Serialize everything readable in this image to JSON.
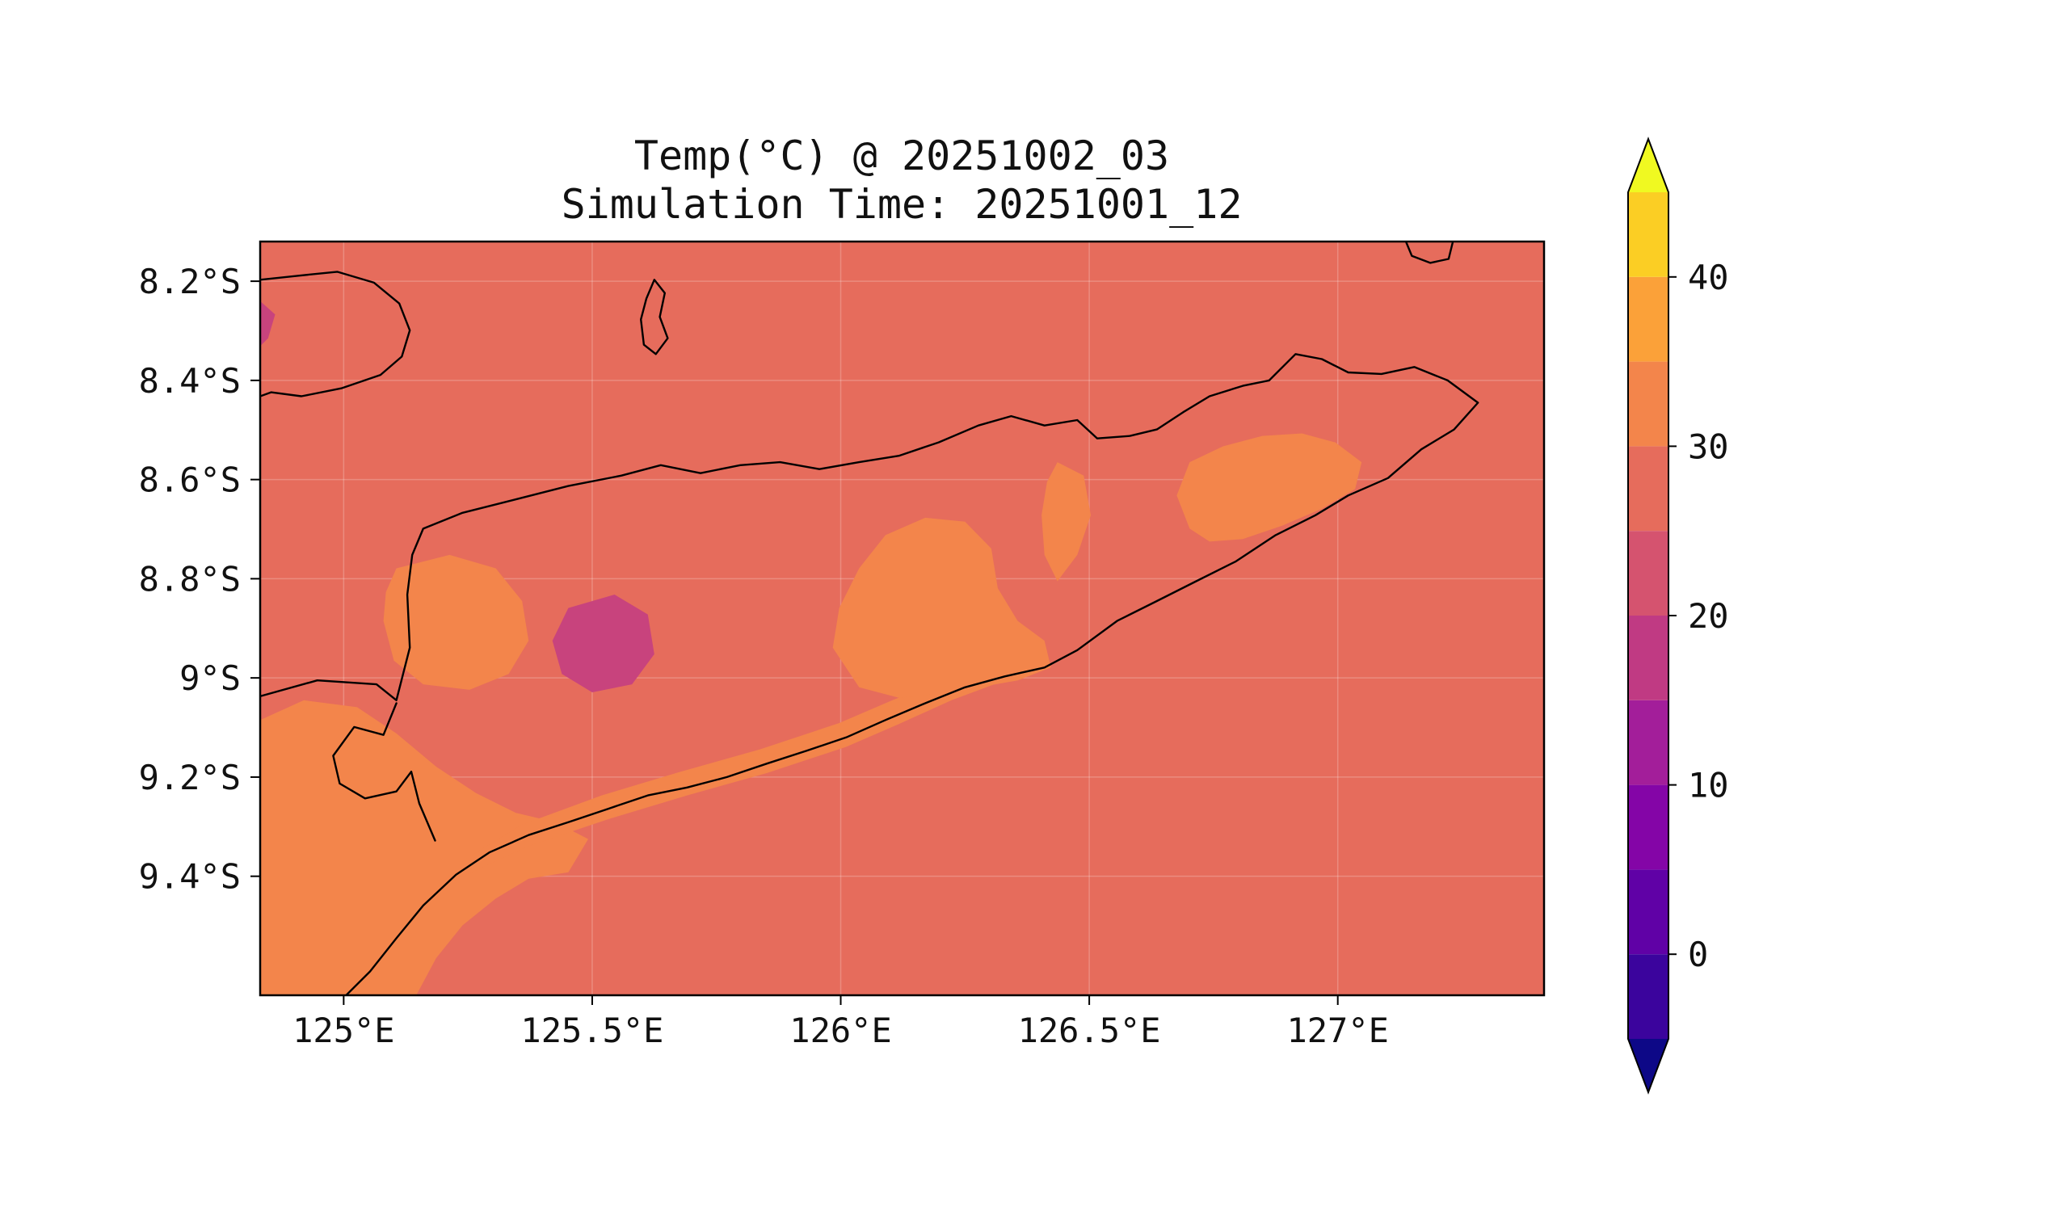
{
  "figure": {
    "title_line1": "Temp(°C) @ 20251002_03",
    "title_line2": "Simulation Time: 20251001_12"
  },
  "axes": {
    "lon_range": [
      124.832,
      127.415
    ],
    "lat_range": [
      8.12,
      9.64
    ],
    "x_ticks": [
      {
        "lon": 125.0,
        "label": "125°E"
      },
      {
        "lon": 125.5,
        "label": "125.5°E"
      },
      {
        "lon": 126.0,
        "label": "126°E"
      },
      {
        "lon": 126.5,
        "label": "126.5°E"
      },
      {
        "lon": 127.0,
        "label": "127°E"
      }
    ],
    "y_ticks": [
      {
        "lat": 8.2,
        "label": "8.2°S"
      },
      {
        "lat": 8.4,
        "label": "8.4°S"
      },
      {
        "lat": 8.6,
        "label": "8.6°S"
      },
      {
        "lat": 8.8,
        "label": "8.8°S"
      },
      {
        "lat": 9.0,
        "label": "9°S"
      },
      {
        "lat": 9.2,
        "label": "9.2°S"
      },
      {
        "lat": 9.4,
        "label": "9.4°S"
      }
    ]
  },
  "colorbar": {
    "vmin": -5,
    "vmax": 45,
    "ticks": [
      {
        "value": 40,
        "label": "40"
      },
      {
        "value": 30,
        "label": "30"
      },
      {
        "value": 20,
        "label": "20"
      },
      {
        "value": 10,
        "label": "10"
      },
      {
        "value": 0,
        "label": "0"
      }
    ],
    "under_color": "#0d0887",
    "over_color": "#f0f921",
    "bands": [
      {
        "from": -5,
        "to": 0,
        "color": "#3b049d"
      },
      {
        "from": 0,
        "to": 5,
        "color": "#6001a6"
      },
      {
        "from": 5,
        "to": 10,
        "color": "#8405a7"
      },
      {
        "from": 10,
        "to": 15,
        "color": "#a31e9a"
      },
      {
        "from": 15,
        "to": 20,
        "color": "#c03a83"
      },
      {
        "from": 20,
        "to": 25,
        "color": "#d5536f"
      },
      {
        "from": 25,
        "to": 30,
        "color": "#e66c5c"
      },
      {
        "from": 30,
        "to": 35,
        "color": "#f3854b"
      },
      {
        "from": 35,
        "to": 40,
        "color": "#fba139"
      },
      {
        "from": 40,
        "to": 45,
        "color": "#fbce24"
      }
    ]
  },
  "chart_data": {
    "type": "heatmap",
    "variable": "Temp",
    "units": "°C",
    "valid_time": "20251002_03",
    "simulation_time": "20251001_12",
    "grid": true,
    "gridline_color": "rgba(255,255,255,0.22)",
    "background_band": {
      "range_c": [
        25,
        30
      ],
      "color": "#e66c5c"
    },
    "filled_regions": [
      {
        "name": "orange-nw-interior",
        "band_c": [
          30,
          35
        ],
        "color": "#f3854b",
        "points": [
          [
            125.106,
            8.779
          ],
          [
            125.213,
            8.752
          ],
          [
            125.306,
            8.779
          ],
          [
            125.359,
            8.845
          ],
          [
            125.372,
            8.925
          ],
          [
            125.332,
            8.992
          ],
          [
            125.253,
            9.024
          ],
          [
            125.16,
            9.013
          ],
          [
            125.101,
            8.965
          ],
          [
            125.08,
            8.885
          ],
          [
            125.085,
            8.827
          ]
        ]
      },
      {
        "name": "orange-southwest",
        "band_c": [
          30,
          35
        ],
        "color": "#f3854b",
        "points": [
          [
            124.832,
            9.085
          ],
          [
            124.92,
            9.045
          ],
          [
            125.027,
            9.059
          ],
          [
            125.106,
            9.112
          ],
          [
            125.186,
            9.179
          ],
          [
            125.266,
            9.232
          ],
          [
            125.346,
            9.272
          ],
          [
            125.426,
            9.291
          ],
          [
            125.492,
            9.325
          ],
          [
            125.452,
            9.392
          ],
          [
            125.372,
            9.405
          ],
          [
            125.306,
            9.445
          ],
          [
            125.239,
            9.499
          ],
          [
            125.186,
            9.565
          ],
          [
            125.146,
            9.64
          ],
          [
            124.832,
            9.64
          ]
        ]
      },
      {
        "name": "orange-south-coast-band",
        "band_c": [
          30,
          35
        ],
        "color": "#f3854b",
        "points": [
          [
            125.186,
            9.425
          ],
          [
            125.372,
            9.339
          ],
          [
            125.532,
            9.285
          ],
          [
            125.691,
            9.237
          ],
          [
            125.851,
            9.192
          ],
          [
            126.011,
            9.139
          ],
          [
            126.117,
            9.093
          ],
          [
            126.223,
            9.045
          ],
          [
            126.33,
            9.005
          ],
          [
            126.41,
            8.979
          ],
          [
            126.415,
            8.944
          ],
          [
            126.316,
            8.965
          ],
          [
            126.21,
            9.003
          ],
          [
            126.104,
            9.045
          ],
          [
            125.997,
            9.091
          ],
          [
            125.838,
            9.144
          ],
          [
            125.678,
            9.189
          ],
          [
            125.519,
            9.237
          ],
          [
            125.359,
            9.296
          ],
          [
            125.245,
            9.365
          ]
        ]
      },
      {
        "name": "orange-central",
        "band_c": [
          30,
          35
        ],
        "color": "#f3854b",
        "points": [
          [
            126.037,
            9.019
          ],
          [
            125.984,
            8.939
          ],
          [
            125.997,
            8.859
          ],
          [
            126.037,
            8.779
          ],
          [
            126.09,
            8.712
          ],
          [
            126.17,
            8.677
          ],
          [
            126.25,
            8.685
          ],
          [
            126.303,
            8.739
          ],
          [
            126.316,
            8.819
          ],
          [
            126.356,
            8.885
          ],
          [
            126.41,
            8.925
          ],
          [
            126.423,
            8.979
          ],
          [
            126.356,
            9.005
          ],
          [
            126.277,
            9.019
          ],
          [
            126.197,
            9.032
          ],
          [
            126.117,
            9.04
          ]
        ]
      },
      {
        "name": "orange-north-sliver",
        "band_c": [
          30,
          35
        ],
        "color": "#f3854b",
        "points": [
          [
            126.436,
            8.565
          ],
          [
            126.489,
            8.592
          ],
          [
            126.503,
            8.672
          ],
          [
            126.476,
            8.752
          ],
          [
            126.436,
            8.805
          ],
          [
            126.41,
            8.752
          ],
          [
            126.404,
            8.672
          ],
          [
            126.415,
            8.605
          ]
        ]
      },
      {
        "name": "orange-northeast",
        "band_c": [
          30,
          35
        ],
        "color": "#f3854b",
        "points": [
          [
            126.702,
            8.699
          ],
          [
            126.676,
            8.632
          ],
          [
            126.702,
            8.565
          ],
          [
            126.769,
            8.533
          ],
          [
            126.848,
            8.512
          ],
          [
            126.928,
            8.507
          ],
          [
            126.995,
            8.525
          ],
          [
            127.048,
            8.565
          ],
          [
            127.035,
            8.619
          ],
          [
            126.968,
            8.659
          ],
          [
            126.888,
            8.693
          ],
          [
            126.809,
            8.72
          ],
          [
            126.742,
            8.725
          ]
        ]
      },
      {
        "name": "cool-spot-central",
        "band_c": [
          20,
          25
        ],
        "color": "#c8437d",
        "points": [
          [
            125.452,
            8.859
          ],
          [
            125.545,
            8.832
          ],
          [
            125.612,
            8.872
          ],
          [
            125.625,
            8.952
          ],
          [
            125.58,
            9.013
          ],
          [
            125.5,
            9.029
          ],
          [
            125.439,
            8.992
          ],
          [
            125.42,
            8.925
          ]
        ]
      },
      {
        "name": "cool-sliver-west-edge",
        "band_c": [
          20,
          25
        ],
        "color": "#c8437d",
        "points": [
          [
            124.832,
            8.24
          ],
          [
            124.862,
            8.267
          ],
          [
            124.848,
            8.315
          ],
          [
            124.832,
            8.331
          ]
        ]
      }
    ],
    "coastlines": [
      {
        "name": "timor-main",
        "closed": false,
        "points": [
          [
            124.832,
            9.037
          ],
          [
            124.947,
            9.005
          ],
          [
            125.066,
            9.013
          ],
          [
            125.106,
            9.045
          ],
          [
            125.133,
            8.939
          ],
          [
            125.128,
            8.832
          ],
          [
            125.138,
            8.752
          ],
          [
            125.16,
            8.699
          ],
          [
            125.239,
            8.667
          ],
          [
            125.346,
            8.64
          ],
          [
            125.452,
            8.613
          ],
          [
            125.559,
            8.592
          ],
          [
            125.638,
            8.571
          ],
          [
            125.718,
            8.587
          ],
          [
            125.798,
            8.571
          ],
          [
            125.878,
            8.565
          ],
          [
            125.957,
            8.579
          ],
          [
            126.037,
            8.565
          ],
          [
            126.117,
            8.552
          ],
          [
            126.197,
            8.525
          ],
          [
            126.277,
            8.491
          ],
          [
            126.343,
            8.472
          ],
          [
            126.41,
            8.491
          ],
          [
            126.476,
            8.48
          ],
          [
            126.516,
            8.517
          ],
          [
            126.582,
            8.512
          ],
          [
            126.636,
            8.499
          ],
          [
            126.689,
            8.464
          ],
          [
            126.742,
            8.432
          ],
          [
            126.809,
            8.411
          ],
          [
            126.862,
            8.4
          ],
          [
            126.915,
            8.347
          ],
          [
            126.968,
            8.357
          ],
          [
            127.021,
            8.384
          ],
          [
            127.088,
            8.387
          ],
          [
            127.154,
            8.373
          ],
          [
            127.221,
            8.4
          ],
          [
            127.282,
            8.445
          ],
          [
            127.234,
            8.499
          ],
          [
            127.168,
            8.539
          ],
          [
            127.101,
            8.597
          ],
          [
            127.021,
            8.632
          ],
          [
            126.955,
            8.672
          ],
          [
            126.875,
            8.712
          ],
          [
            126.795,
            8.765
          ],
          [
            126.715,
            8.805
          ],
          [
            126.636,
            8.845
          ],
          [
            126.556,
            8.885
          ],
          [
            126.476,
            8.944
          ],
          [
            126.41,
            8.979
          ],
          [
            126.33,
            8.997
          ],
          [
            126.25,
            9.019
          ],
          [
            126.17,
            9.051
          ],
          [
            126.09,
            9.085
          ],
          [
            126.011,
            9.12
          ],
          [
            125.931,
            9.147
          ],
          [
            125.851,
            9.173
          ],
          [
            125.771,
            9.2
          ],
          [
            125.691,
            9.221
          ],
          [
            125.612,
            9.237
          ],
          [
            125.532,
            9.264
          ],
          [
            125.452,
            9.291
          ],
          [
            125.372,
            9.317
          ],
          [
            125.293,
            9.352
          ],
          [
            125.226,
            9.397
          ],
          [
            125.16,
            9.459
          ],
          [
            125.106,
            9.525
          ],
          [
            125.053,
            9.592
          ],
          [
            125.005,
            9.64
          ]
        ]
      },
      {
        "name": "kupang-bay-hook",
        "closed": false,
        "points": [
          [
            125.106,
            9.051
          ],
          [
            125.08,
            9.115
          ],
          [
            125.021,
            9.099
          ],
          [
            124.979,
            9.157
          ],
          [
            124.992,
            9.213
          ],
          [
            125.043,
            9.243
          ],
          [
            125.106,
            9.229
          ],
          [
            125.136,
            9.189
          ],
          [
            125.152,
            9.253
          ],
          [
            125.184,
            9.328
          ]
        ]
      },
      {
        "name": "alor-east-tip",
        "closed": false,
        "points": [
          [
            124.832,
            8.197
          ],
          [
            124.907,
            8.189
          ],
          [
            124.987,
            8.181
          ],
          [
            125.061,
            8.203
          ],
          [
            125.112,
            8.245
          ],
          [
            125.133,
            8.299
          ],
          [
            125.117,
            8.352
          ],
          [
            125.074,
            8.389
          ],
          [
            124.995,
            8.416
          ],
          [
            124.915,
            8.432
          ],
          [
            124.854,
            8.424
          ],
          [
            124.832,
            8.432
          ]
        ]
      },
      {
        "name": "atauro-island",
        "closed": true,
        "points": [
          [
            125.625,
            8.197
          ],
          [
            125.646,
            8.224
          ],
          [
            125.636,
            8.272
          ],
          [
            125.652,
            8.315
          ],
          [
            125.628,
            8.347
          ],
          [
            125.604,
            8.328
          ],
          [
            125.598,
            8.277
          ],
          [
            125.609,
            8.235
          ]
        ]
      },
      {
        "name": "wetar-fragment",
        "closed": false,
        "points": [
          [
            127.133,
            8.11
          ],
          [
            127.149,
            8.149
          ],
          [
            127.186,
            8.163
          ],
          [
            127.223,
            8.155
          ],
          [
            127.234,
            8.11
          ]
        ]
      }
    ]
  }
}
